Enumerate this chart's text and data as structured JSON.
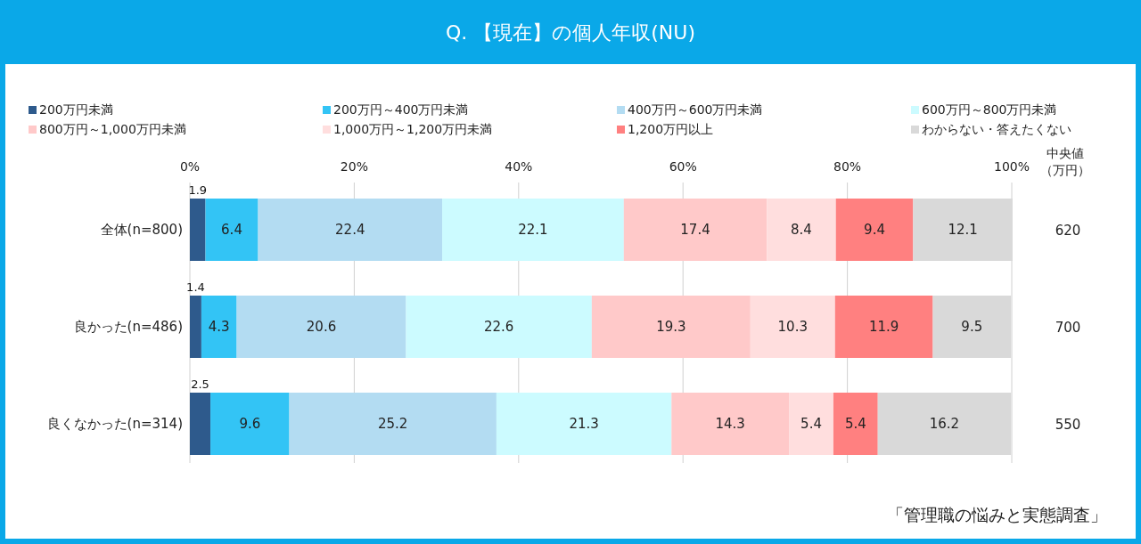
{
  "chart_data": {
    "type": "bar",
    "orientation": "horizontal",
    "stacked": true,
    "title": "Q. 【現在】の個人年収(NU)",
    "categories": [
      "全体(n=800)",
      "良かった(n=486)",
      "良くなかった(n=314)"
    ],
    "series": [
      {
        "name": "200万円未満",
        "color": "#2e5a8c",
        "values": [
          1.9,
          1.4,
          2.5
        ]
      },
      {
        "name": "200万円～400万円未満",
        "color": "#33c4f5",
        "values": [
          6.4,
          4.3,
          9.6
        ]
      },
      {
        "name": "400万円～600万円未満",
        "color": "#b3dcf2",
        "values": [
          22.4,
          20.6,
          25.2
        ]
      },
      {
        "name": "600万円～800万円未満",
        "color": "#ccfbff",
        "values": [
          22.1,
          22.6,
          21.3
        ]
      },
      {
        "name": "800万円～1,000万円未満",
        "color": "#ffc9c9",
        "values": [
          17.4,
          19.3,
          14.3
        ]
      },
      {
        "name": "1,000万円～1,200万円未満",
        "color": "#ffdede",
        "values": [
          8.4,
          10.3,
          5.4
        ]
      },
      {
        "name": "1,200万円以上",
        "color": "#ff8080",
        "values": [
          9.4,
          11.9,
          5.4
        ]
      },
      {
        "name": "わからない・答えたくない",
        "color": "#d9d9d9",
        "values": [
          12.1,
          9.5,
          16.2
        ]
      }
    ],
    "xlim": [
      0,
      100
    ],
    "xticks": [
      {
        "value": 0,
        "label": "0%"
      },
      {
        "value": 20,
        "label": "20%"
      },
      {
        "value": 40,
        "label": "40%"
      },
      {
        "value": 60,
        "label": "60%"
      },
      {
        "value": 80,
        "label": "80%"
      },
      {
        "value": 100,
        "label": "100%"
      }
    ],
    "data_labels": true,
    "legend": "top",
    "grid": "x",
    "annotations": [
      "中央値",
      "（万円）",
      "620",
      "700",
      "550",
      "「管理職の悩みと実態調査」"
    ]
  }
}
